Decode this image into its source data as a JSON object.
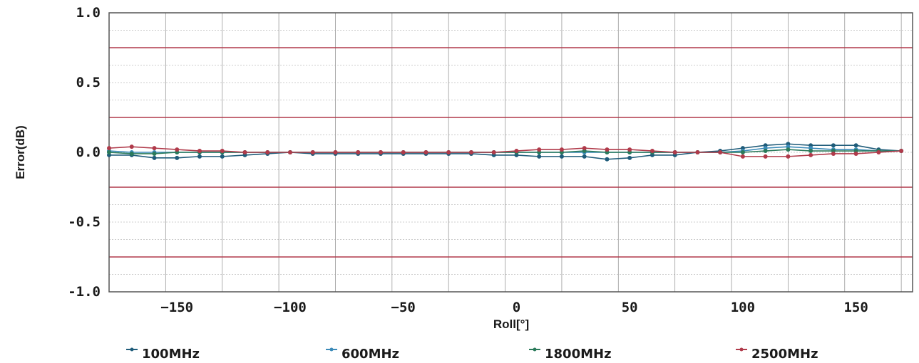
{
  "chart_data": {
    "type": "line",
    "xlabel": "Roll[°]",
    "ylabel": "Error(dB)",
    "xlim": [
      -180,
      175
    ],
    "ylim": [
      -1.0,
      1.0
    ],
    "x_ticks": [
      -150,
      -100,
      -50,
      0,
      50,
      100,
      150
    ],
    "y_ticks": [
      1.0,
      0.5,
      0.0,
      -0.5,
      -1.0
    ],
    "y_tick_labels": [
      "1.0",
      "0.5",
      "0.0",
      "-0.5",
      "-1.0"
    ],
    "tolerance_lines": [
      0.75,
      0.25,
      -0.25,
      -0.75
    ],
    "grid": true,
    "legend_placement": "bottom",
    "colors": {
      "grid_minor": "#9a9a9a",
      "grid_major": "#6a6a6a",
      "tolerance": "#b0394a",
      "axis": "#555555"
    },
    "x": [
      -180,
      -170,
      -160,
      -150,
      -140,
      -130,
      -120,
      -110,
      -100,
      -90,
      -80,
      -70,
      -60,
      -50,
      -40,
      -30,
      -20,
      -10,
      0,
      10,
      20,
      30,
      40,
      50,
      60,
      70,
      80,
      90,
      100,
      110,
      120,
      130,
      140,
      150,
      160,
      170
    ],
    "series": [
      {
        "name": "100MHz",
        "color": "#1f5c7a",
        "values": [
          -0.02,
          -0.02,
          -0.04,
          -0.04,
          -0.03,
          -0.03,
          -0.02,
          -0.01,
          0.0,
          -0.01,
          -0.01,
          -0.01,
          -0.01,
          -0.01,
          -0.01,
          -0.01,
          -0.01,
          -0.02,
          -0.02,
          -0.03,
          -0.03,
          -0.03,
          -0.05,
          -0.04,
          -0.02,
          -0.02,
          0.0,
          0.01,
          0.03,
          0.05,
          0.06,
          0.05,
          0.05,
          0.05,
          0.02,
          0.01
        ]
      },
      {
        "name": "600MHz",
        "color": "#3a8ab8",
        "values": [
          0.01,
          0.0,
          0.0,
          0.0,
          0.0,
          0.0,
          0.0,
          0.0,
          0.0,
          0.0,
          0.0,
          0.0,
          0.0,
          0.0,
          0.0,
          0.0,
          0.0,
          0.0,
          0.0,
          0.0,
          0.0,
          0.0,
          0.0,
          0.0,
          0.0,
          0.0,
          0.0,
          0.0,
          0.01,
          0.03,
          0.04,
          0.03,
          0.02,
          0.02,
          0.01,
          0.01
        ]
      },
      {
        "name": "1800MHz",
        "color": "#2a7a5a",
        "values": [
          0.0,
          -0.01,
          -0.01,
          0.0,
          0.0,
          0.0,
          0.0,
          0.0,
          0.0,
          0.0,
          0.0,
          0.0,
          0.0,
          0.0,
          0.0,
          0.0,
          0.0,
          0.0,
          0.0,
          0.0,
          0.0,
          0.01,
          0.0,
          0.0,
          0.0,
          0.0,
          0.0,
          0.0,
          0.0,
          0.01,
          0.02,
          0.01,
          0.01,
          0.01,
          0.01,
          0.01
        ]
      },
      {
        "name": "2500MHz",
        "color": "#b03a4a",
        "values": [
          0.03,
          0.04,
          0.03,
          0.02,
          0.01,
          0.01,
          0.0,
          0.0,
          0.0,
          0.0,
          0.0,
          0.0,
          0.0,
          0.0,
          0.0,
          0.0,
          0.0,
          0.0,
          0.01,
          0.02,
          0.02,
          0.03,
          0.02,
          0.02,
          0.01,
          0.0,
          0.0,
          0.0,
          -0.03,
          -0.03,
          -0.03,
          -0.02,
          -0.01,
          -0.01,
          0.0,
          0.01
        ]
      }
    ]
  }
}
